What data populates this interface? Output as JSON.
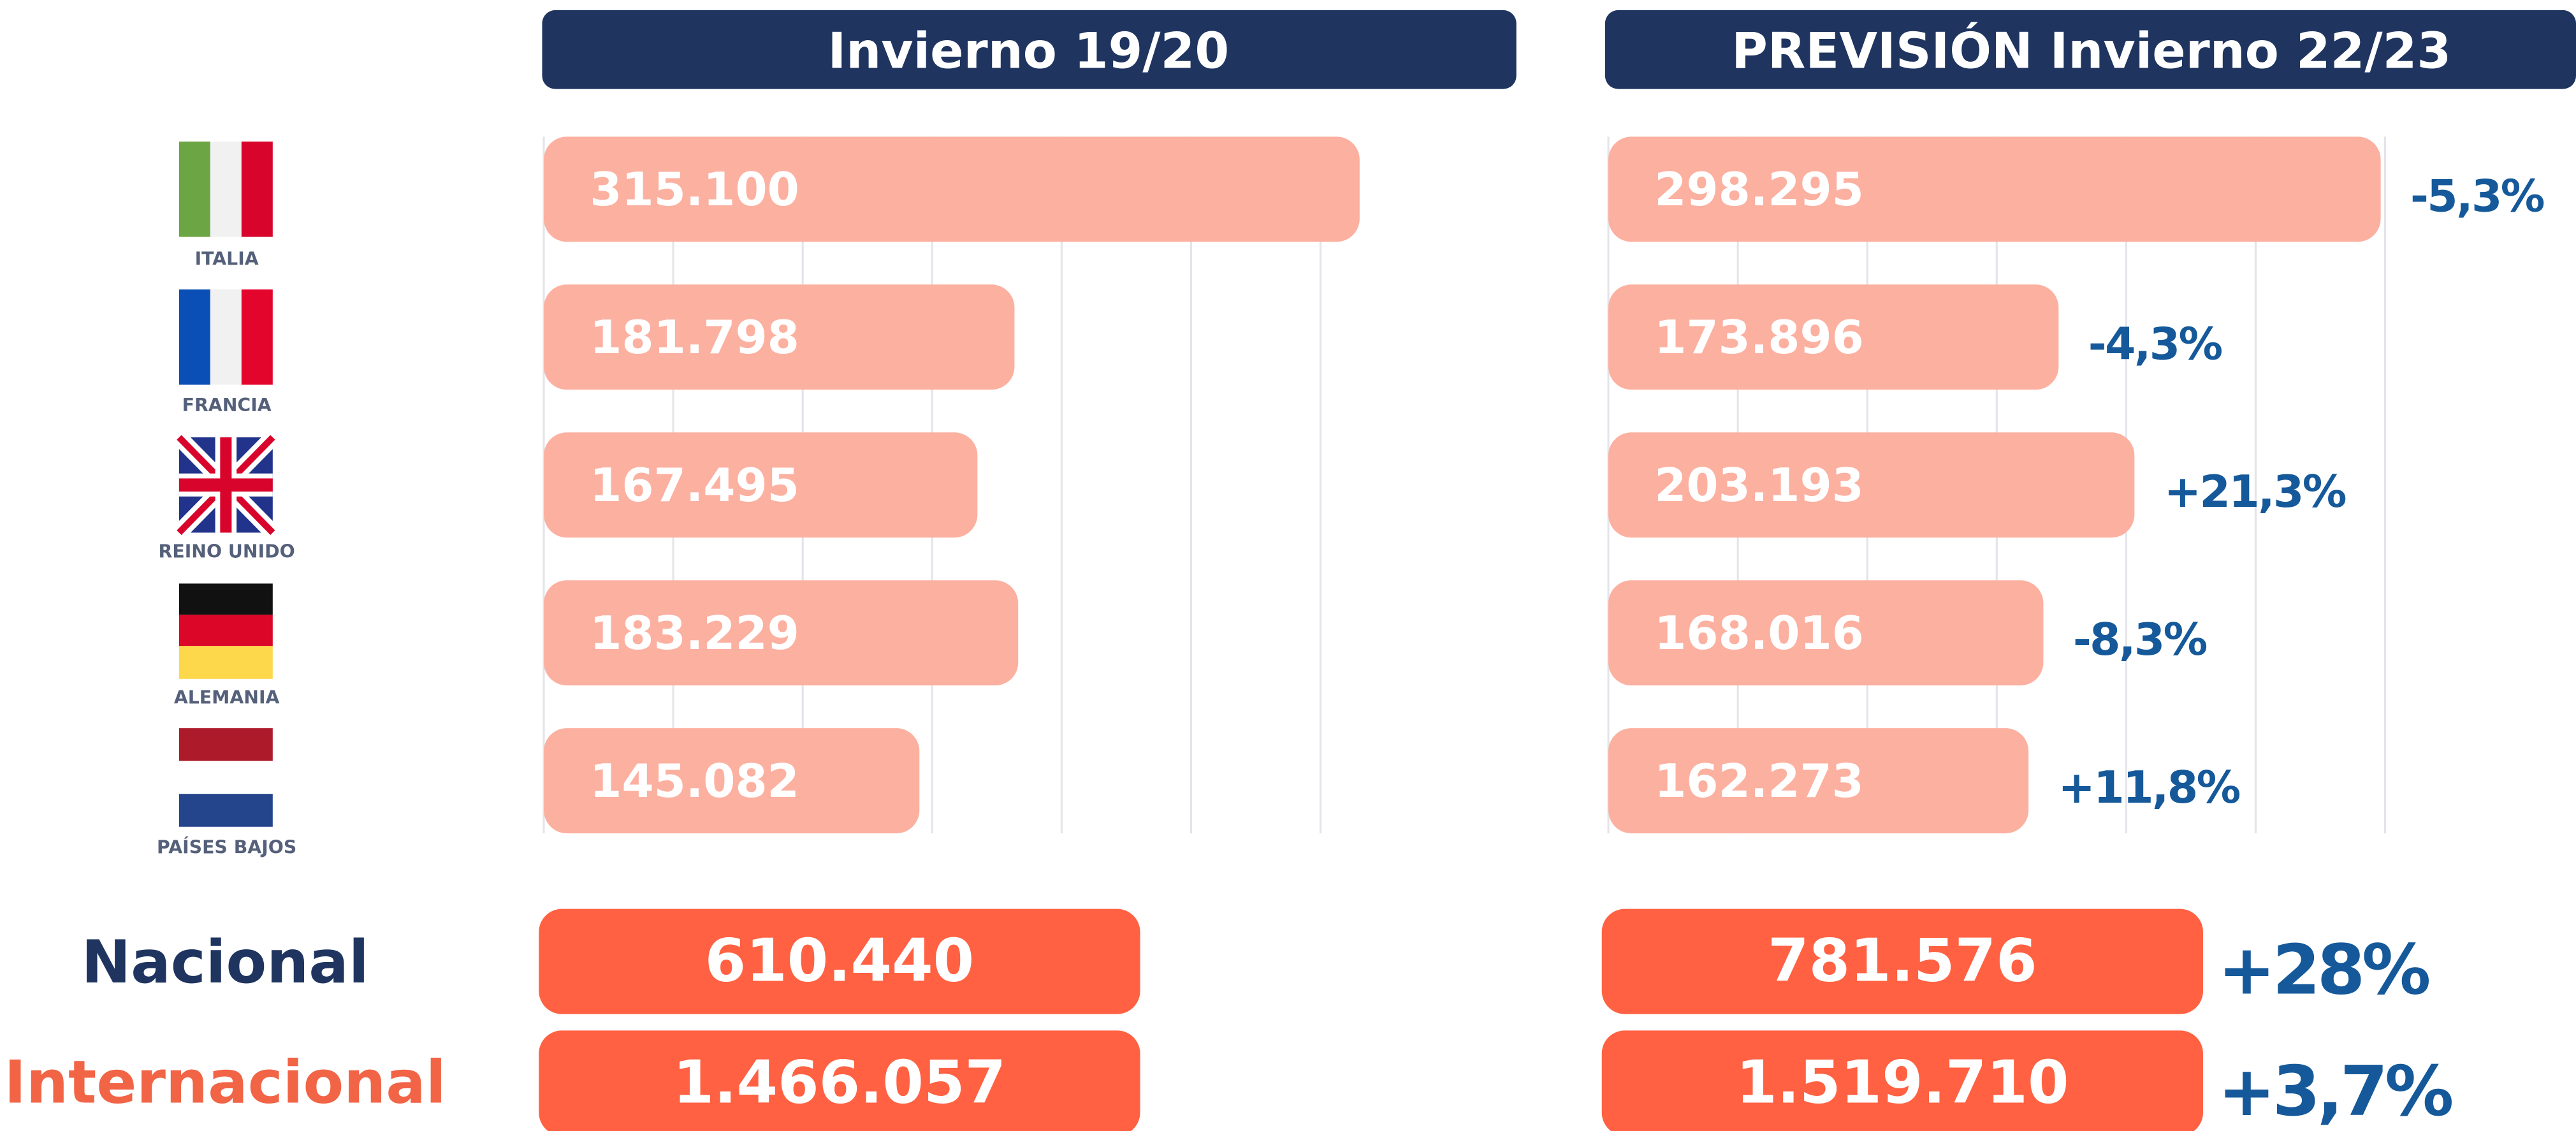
{
  "chart_data": [
    {
      "type": "bar",
      "title": "Invierno 19/20",
      "categories": [
        "ITALIA",
        "FRANCIA",
        "REINO UNIDO",
        "ALEMANIA",
        "PAÍSES BAJOS"
      ],
      "values": [
        315100,
        181798,
        167495,
        183229,
        145082
      ],
      "value_labels": [
        "315.100",
        "181.798",
        "167.495",
        "183.229",
        "145.082"
      ],
      "color": "#fcb0a0",
      "xlim": [
        0,
        375000
      ],
      "xticks": [
        0,
        50000,
        100000,
        150000,
        200000,
        250000,
        300000
      ],
      "grid": true,
      "totals": {
        "values": [
          610440,
          1466057
        ],
        "value_labels": [
          "610.440",
          "1.466.057"
        ],
        "color": "#ff6142"
      }
    },
    {
      "type": "bar",
      "title": "PREVISIÓN Invierno 22/23",
      "values": [
        298295,
        173896,
        203193,
        168016,
        162273
      ],
      "value_labels": [
        "298.295",
        "173.896",
        "203.193",
        "168.016",
        "162.273"
      ],
      "changes": [
        -5.3,
        -4.3,
        21.3,
        -8.3,
        11.8
      ],
      "change_labels": [
        "-5,3%",
        "-4,3%",
        "+21,3%",
        "-8,3%",
        "+11,8%"
      ],
      "color": "#fcb0a0",
      "xlim": [
        0,
        375000
      ],
      "xticks": [
        0,
        50000,
        100000,
        150000,
        200000,
        250000,
        300000
      ],
      "grid": true,
      "totals": {
        "values": [
          781576,
          1519710
        ],
        "value_labels": [
          "781.576",
          "1.519.710"
        ],
        "changes": [
          28,
          3.7
        ],
        "change_labels": [
          "+28%",
          "+3,7%"
        ],
        "color": "#ff6142"
      }
    }
  ],
  "totals": {
    "categories": [
      "Nacional",
      "Internacional"
    ]
  }
}
